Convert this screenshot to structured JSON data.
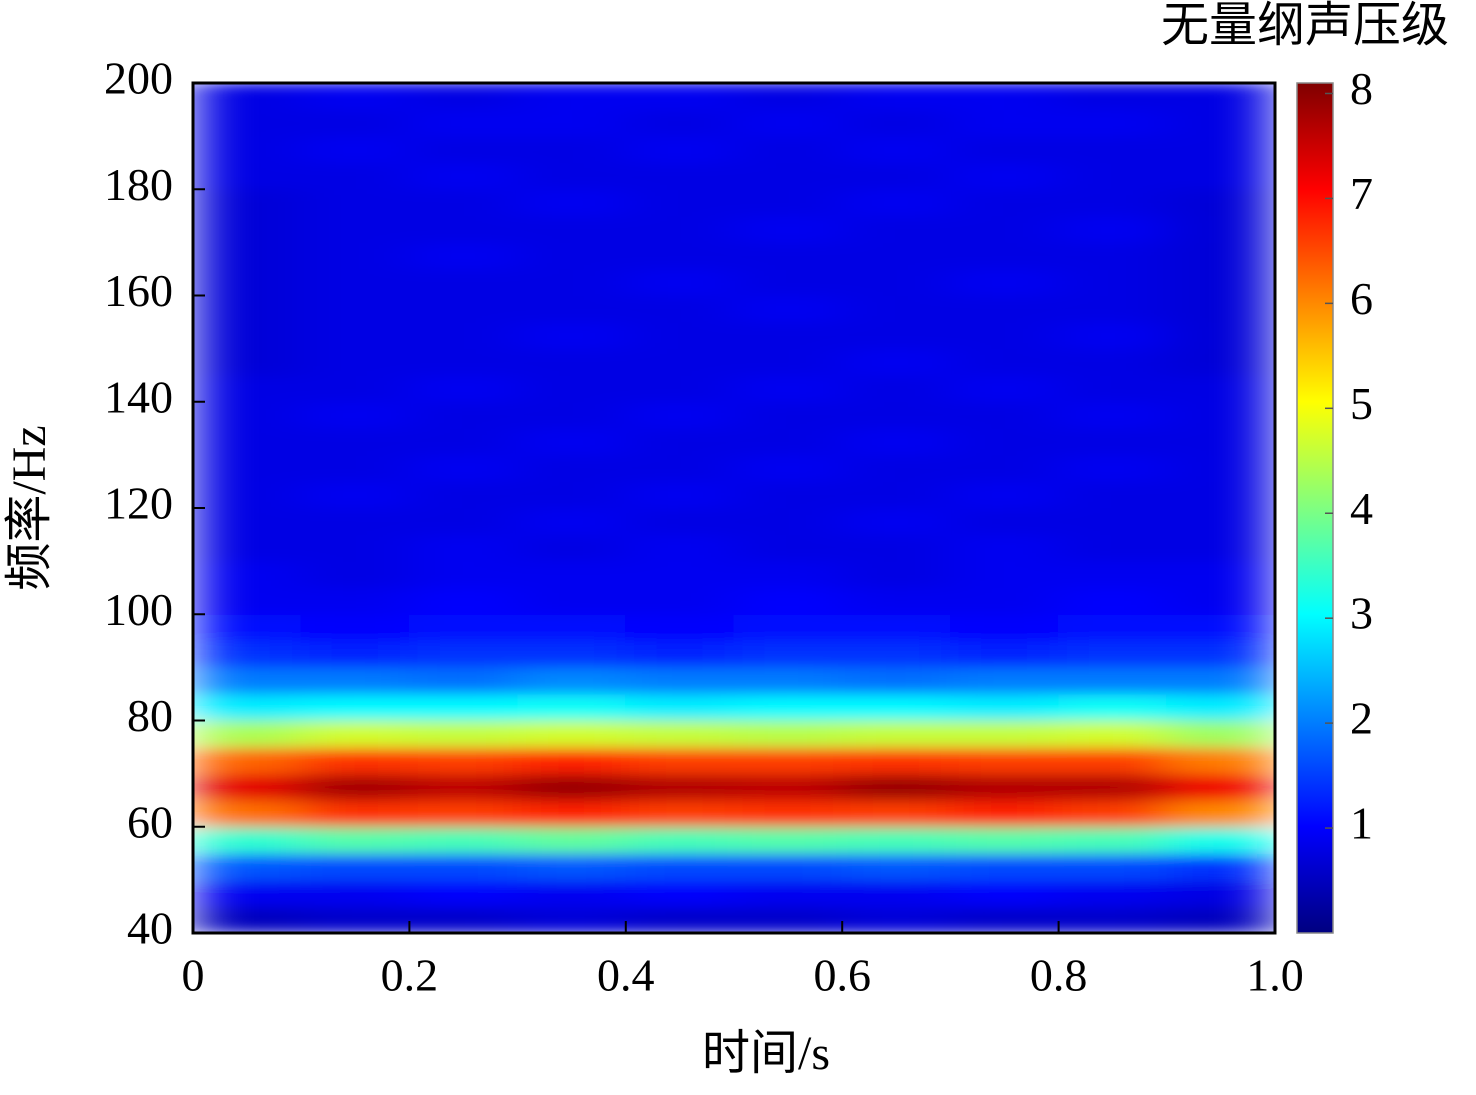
{
  "chart_data": {
    "type": "heatmap",
    "xlabel": "时间/s",
    "ylabel": "频率/Hz",
    "colorbar_label": "无量纲声压级",
    "colormap": "jet",
    "xlim": [
      0,
      1
    ],
    "xticks": [
      0,
      0.2,
      0.4,
      0.6,
      0.8,
      {
        "value": 1,
        "label": "1.0"
      }
    ],
    "ylim": [
      40,
      200
    ],
    "yticks": [
      40,
      60,
      80,
      100,
      120,
      140,
      160,
      180,
      200
    ],
    "clim": [
      0,
      8.1
    ],
    "cticks": [
      1,
      2,
      3,
      4,
      5,
      6,
      7,
      8
    ],
    "x": [
      0.05,
      0.15,
      0.25,
      0.35,
      0.45,
      0.55,
      0.65,
      0.75,
      0.85,
      0.95
    ],
    "y": [
      42.5,
      47.5,
      52.5,
      57.5,
      62.5,
      67.5,
      72.5,
      77.5,
      82.5,
      87.5,
      92.5,
      97.5,
      102.5,
      107.5,
      112.5,
      117.5,
      122.5,
      127.5,
      132.5,
      137.5,
      142.5,
      147.5,
      152.5,
      157.5,
      162.5,
      167.5,
      172.5,
      177.5,
      182.5,
      187.5,
      192.5,
      197.5
    ],
    "z": [
      [
        0.5,
        0.6,
        0.6,
        0.7,
        0.6,
        0.6,
        0.7,
        0.6,
        0.6,
        0.5
      ],
      [
        0.9,
        0.9,
        1.0,
        0.9,
        1.0,
        0.9,
        0.9,
        1.0,
        0.9,
        0.8
      ],
      [
        1.7,
        1.6,
        1.6,
        1.7,
        1.6,
        1.6,
        1.7,
        1.6,
        1.6,
        1.4
      ],
      [
        3.4,
        3.7,
        3.6,
        3.8,
        3.6,
        3.7,
        3.6,
        3.7,
        3.6,
        3.2
      ],
      [
        6.2,
        6.7,
        6.6,
        6.8,
        6.6,
        6.7,
        6.6,
        6.8,
        6.6,
        6.0
      ],
      [
        7.3,
        7.8,
        7.6,
        7.9,
        7.7,
        7.6,
        7.9,
        7.7,
        7.7,
        7.2
      ],
      [
        6.3,
        6.7,
        6.6,
        6.8,
        6.6,
        6.6,
        6.7,
        6.6,
        6.6,
        6.1
      ],
      [
        4.4,
        4.7,
        4.6,
        4.7,
        4.6,
        4.5,
        4.6,
        4.6,
        4.7,
        4.3
      ],
      [
        2.9,
        3.0,
        3.0,
        3.1,
        2.9,
        3.0,
        3.0,
        2.9,
        3.1,
        2.9
      ],
      [
        2.0,
        2.0,
        1.9,
        2.1,
        2.0,
        2.0,
        1.9,
        2.0,
        2.0,
        2.0
      ],
      [
        1.4,
        1.3,
        1.4,
        1.4,
        1.3,
        1.4,
        1.4,
        1.3,
        1.4,
        1.4
      ],
      [
        1.1,
        1.0,
        1.1,
        1.1,
        1.0,
        1.1,
        1.1,
        1.0,
        1.1,
        1.1
      ],
      [
        0.9,
        0.9,
        1.0,
        0.9,
        0.9,
        1.0,
        0.9,
        0.9,
        1.0,
        0.9
      ],
      [
        0.9,
        0.8,
        0.9,
        0.9,
        0.9,
        0.9,
        0.8,
        0.9,
        0.9,
        0.9
      ],
      [
        0.8,
        0.8,
        0.9,
        0.8,
        0.9,
        0.8,
        0.8,
        0.9,
        0.8,
        0.8
      ],
      [
        0.8,
        0.8,
        0.8,
        0.9,
        0.8,
        0.8,
        0.9,
        0.8,
        0.8,
        0.8
      ],
      [
        0.8,
        0.9,
        0.8,
        0.8,
        0.9,
        0.8,
        0.8,
        0.9,
        0.8,
        0.8
      ],
      [
        0.8,
        0.8,
        0.9,
        0.8,
        0.8,
        0.9,
        0.8,
        0.8,
        0.9,
        0.8
      ],
      [
        0.8,
        0.8,
        0.8,
        0.9,
        0.8,
        0.8,
        0.9,
        0.8,
        0.8,
        0.8
      ],
      [
        0.8,
        0.9,
        0.8,
        0.8,
        0.9,
        0.8,
        0.8,
        0.8,
        0.9,
        0.8
      ],
      [
        0.8,
        0.8,
        0.9,
        0.8,
        0.8,
        0.9,
        0.8,
        0.9,
        0.8,
        0.8
      ],
      [
        0.7,
        0.8,
        0.8,
        0.8,
        0.8,
        0.8,
        0.9,
        0.8,
        0.8,
        0.7
      ],
      [
        0.7,
        0.8,
        0.8,
        0.9,
        0.8,
        0.8,
        0.8,
        0.8,
        0.9,
        0.7
      ],
      [
        0.7,
        0.8,
        0.8,
        0.8,
        0.8,
        0.9,
        0.8,
        0.8,
        0.8,
        0.7
      ],
      [
        0.7,
        0.8,
        0.8,
        0.8,
        0.9,
        0.8,
        0.8,
        0.9,
        0.8,
        0.7
      ],
      [
        0.7,
        0.8,
        0.9,
        0.8,
        0.8,
        0.8,
        0.8,
        0.8,
        0.8,
        0.7
      ],
      [
        0.7,
        0.8,
        0.8,
        0.8,
        0.8,
        0.9,
        0.8,
        0.8,
        0.9,
        0.7
      ],
      [
        0.7,
        0.8,
        0.8,
        0.9,
        0.8,
        0.8,
        0.9,
        0.8,
        0.8,
        0.7
      ],
      [
        0.8,
        0.8,
        0.9,
        0.8,
        0.8,
        0.8,
        0.8,
        0.9,
        0.8,
        0.8
      ],
      [
        0.8,
        0.9,
        0.8,
        0.8,
        0.9,
        0.8,
        0.9,
        0.8,
        0.8,
        0.8
      ],
      [
        0.8,
        0.8,
        0.9,
        0.9,
        0.8,
        0.9,
        0.8,
        0.9,
        0.9,
        0.8
      ],
      [
        0.8,
        0.9,
        0.8,
        0.9,
        0.9,
        0.8,
        0.9,
        0.9,
        0.8,
        0.8
      ]
    ]
  }
}
